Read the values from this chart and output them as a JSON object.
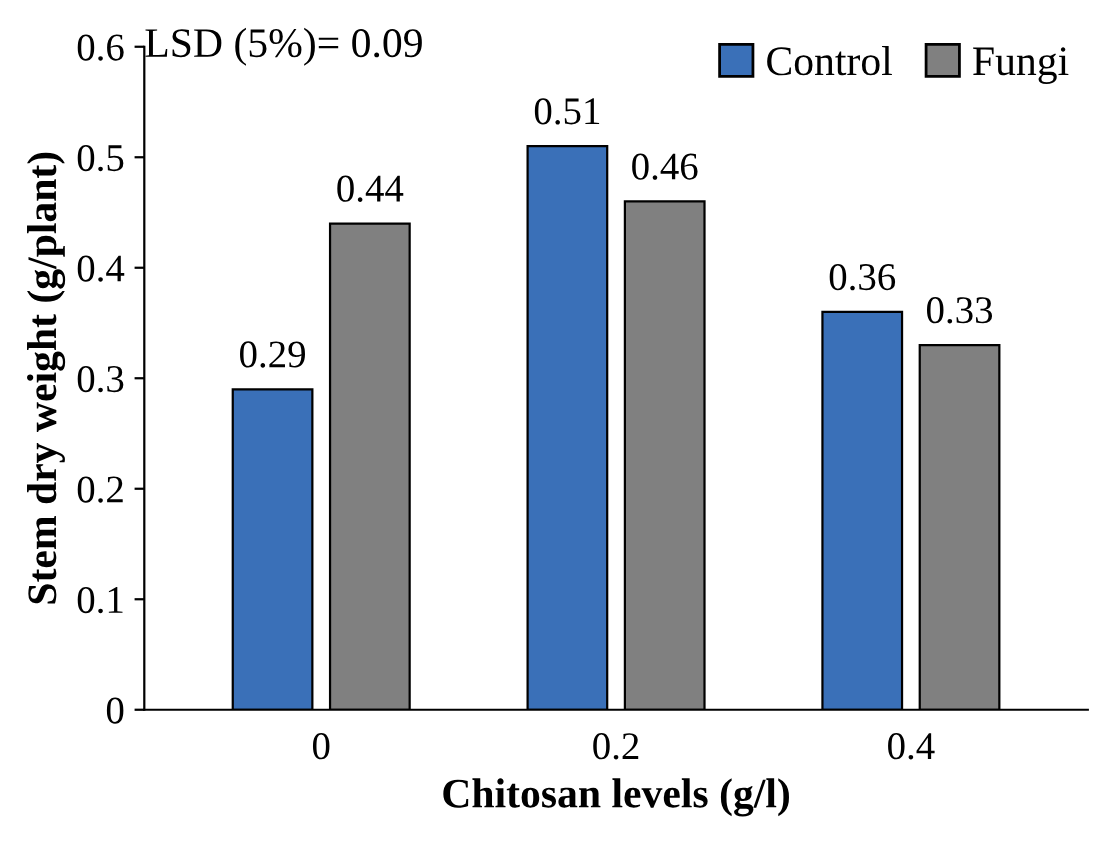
{
  "chart_data": {
    "type": "bar",
    "xlabel": "Chitosan levels (g/l)",
    "ylabel": "Stem dry weight (g/plant)",
    "categories": [
      "0",
      "0.2",
      "0.4"
    ],
    "series": [
      {
        "name": "Control",
        "color": "#3a70b8",
        "values": [
          0.29,
          0.51,
          0.36
        ]
      },
      {
        "name": "Fungi",
        "color": "#808080",
        "values": [
          0.44,
          0.46,
          0.33
        ]
      }
    ],
    "ylim": [
      0,
      0.6
    ],
    "yticks": [
      0,
      0.1,
      0.2,
      0.3,
      0.4,
      0.5,
      0.6
    ],
    "annotations": [
      "LSD (5%)= 0.09"
    ],
    "data_labels": true,
    "legend": "top right",
    "grid": false
  }
}
